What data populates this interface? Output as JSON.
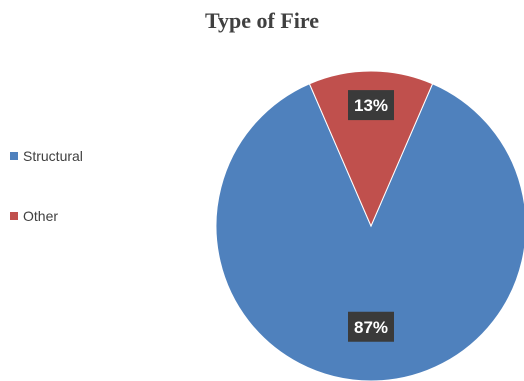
{
  "chart_data": {
    "type": "pie",
    "title": "Type of Fire",
    "legend_position": "left",
    "slices": [
      {
        "name": "Structural",
        "value": 87,
        "label": "87%",
        "color": "#4f81bd"
      },
      {
        "name": "Other",
        "value": 13,
        "label": "13%",
        "color": "#c0504d"
      }
    ]
  }
}
